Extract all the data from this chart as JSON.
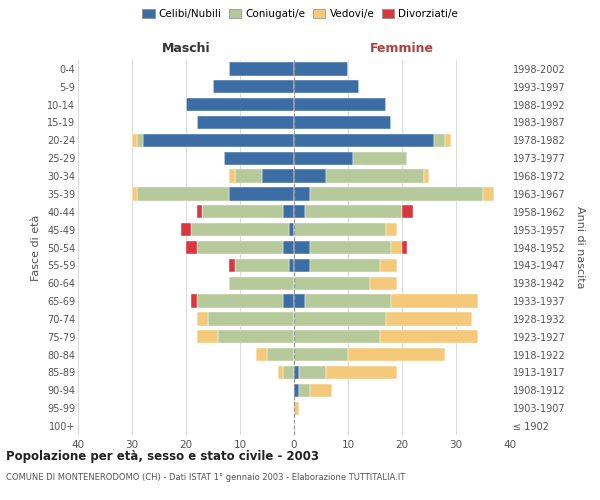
{
  "age_groups": [
    "100+",
    "95-99",
    "90-94",
    "85-89",
    "80-84",
    "75-79",
    "70-74",
    "65-69",
    "60-64",
    "55-59",
    "50-54",
    "45-49",
    "40-44",
    "35-39",
    "30-34",
    "25-29",
    "20-24",
    "15-19",
    "10-14",
    "5-9",
    "0-4"
  ],
  "birth_years": [
    "≤ 1902",
    "1903-1907",
    "1908-1912",
    "1913-1917",
    "1918-1922",
    "1923-1927",
    "1928-1932",
    "1933-1937",
    "1938-1942",
    "1943-1947",
    "1948-1952",
    "1953-1957",
    "1958-1962",
    "1963-1967",
    "1968-1972",
    "1973-1977",
    "1978-1982",
    "1983-1987",
    "1988-1992",
    "1993-1997",
    "1998-2002"
  ],
  "colors": {
    "celibi": "#3c6ea5",
    "coniugati": "#b5c99a",
    "vedovi": "#f5c97a",
    "divorziati": "#d9363e"
  },
  "maschi": {
    "celibi": [
      0,
      0,
      0,
      0,
      0,
      0,
      0,
      2,
      0,
      1,
      2,
      1,
      2,
      12,
      6,
      13,
      28,
      18,
      20,
      15,
      12
    ],
    "coniugati": [
      0,
      0,
      0,
      2,
      5,
      14,
      16,
      16,
      12,
      10,
      16,
      18,
      15,
      17,
      5,
      0,
      1,
      0,
      0,
      0,
      0
    ],
    "vedovi": [
      0,
      0,
      0,
      1,
      2,
      4,
      2,
      0,
      0,
      0,
      0,
      0,
      0,
      1,
      1,
      0,
      1,
      0,
      0,
      0,
      0
    ],
    "divorziati": [
      0,
      0,
      0,
      0,
      0,
      0,
      0,
      1,
      0,
      1,
      2,
      2,
      1,
      0,
      0,
      0,
      0,
      0,
      0,
      0,
      0
    ]
  },
  "femmine": {
    "celibi": [
      0,
      0,
      1,
      1,
      0,
      0,
      0,
      2,
      0,
      3,
      3,
      0,
      2,
      3,
      6,
      11,
      26,
      18,
      17,
      12,
      10
    ],
    "coniugati": [
      0,
      0,
      2,
      5,
      10,
      16,
      17,
      16,
      14,
      13,
      15,
      17,
      18,
      32,
      18,
      10,
      2,
      0,
      0,
      0,
      0
    ],
    "vedovi": [
      0,
      1,
      4,
      13,
      18,
      18,
      16,
      16,
      5,
      3,
      2,
      2,
      0,
      2,
      1,
      0,
      1,
      0,
      0,
      0,
      0
    ],
    "divorziati": [
      0,
      0,
      0,
      0,
      0,
      0,
      0,
      0,
      0,
      0,
      1,
      0,
      2,
      0,
      0,
      0,
      0,
      0,
      0,
      0,
      0
    ]
  },
  "xlim": 40,
  "title": "Popolazione per età, sesso e stato civile - 2003",
  "subtitle": "COMUNE DI MONTENERODOMO (CH) - Dati ISTAT 1° gennaio 2003 - Elaborazione TUTTITALIA.IT",
  "ylabel_left": "Fasce di età",
  "ylabel_right": "Anni di nascita",
  "xlabel_left": "Maschi",
  "xlabel_right": "Femmine",
  "legend_labels": [
    "Celibi/Nubili",
    "Coniugati/e",
    "Vedovi/e",
    "Divorziati/e"
  ],
  "background_color": "#ffffff",
  "grid_color": "#cccccc",
  "maschi_color": "#333333",
  "femmine_color": "#b34040"
}
